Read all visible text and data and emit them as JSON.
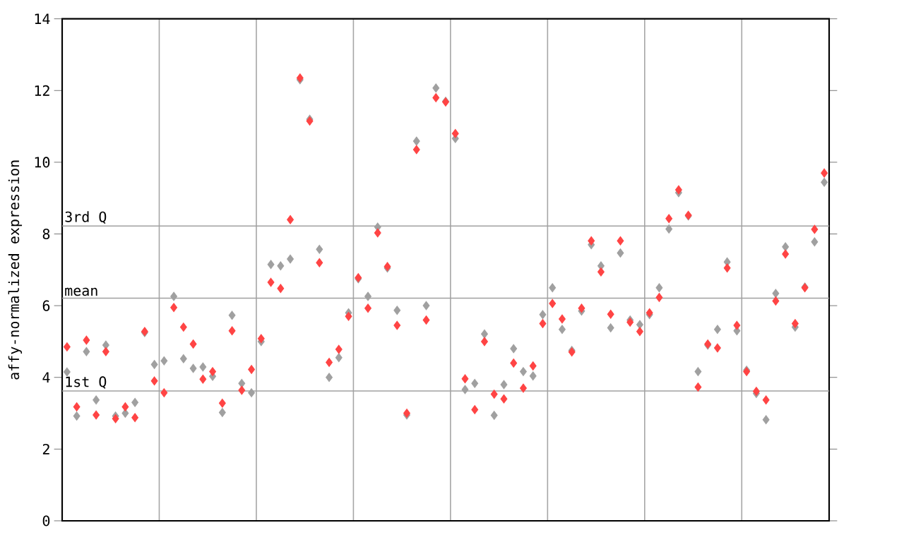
{
  "chart_data": {
    "type": "scatter",
    "ylabel": "affy-normalized expression",
    "ylim": [
      0,
      14
    ],
    "categories": [
      null,
      null,
      null,
      null,
      null,
      null,
      null,
      null,
      null,
      null,
      null,
      null,
      null,
      null,
      null,
      null,
      null,
      null,
      null,
      null,
      null,
      null,
      null,
      null,
      null,
      null,
      null,
      null,
      null,
      null,
      null,
      null,
      null,
      null,
      null,
      null,
      null,
      null,
      null,
      null,
      null,
      null,
      null,
      null,
      null,
      null,
      null,
      null,
      null,
      null,
      null,
      null,
      null,
      null,
      null,
      null,
      null,
      null,
      null,
      null,
      null,
      null,
      null,
      null,
      null,
      null,
      null,
      null,
      null,
      null,
      null,
      null,
      null,
      null,
      null,
      null,
      null,
      null,
      null
    ],
    "yticks": [
      0,
      2,
      4,
      6,
      8,
      10,
      12,
      14
    ],
    "grid": "x",
    "tick_labels": "y",
    "marker": "diamond",
    "ref_lines": [
      {
        "axis": "y",
        "value": 3.62,
        "label": "1st Q",
        "color": "#a0a0a0"
      },
      {
        "axis": "y",
        "value": 6.21,
        "label": "mean",
        "color": "#a0a0a0"
      },
      {
        "axis": "y",
        "value": 8.22,
        "label": "3rd Q",
        "color": "#a0a0a0"
      }
    ],
    "series": [
      {
        "color": "#a0a0a0",
        "values": [
          4.15,
          2.92,
          4.72,
          3.37,
          4.9,
          2.92,
          3.0,
          3.3,
          5.25,
          4.36,
          4.46,
          6.26,
          4.52,
          4.25,
          4.29,
          4.03,
          3.02,
          5.73,
          3.83,
          3.57,
          5.0,
          7.15,
          7.11,
          7.3,
          12.3,
          11.2,
          7.57,
          4.0,
          4.55,
          5.8,
          6.75,
          6.26,
          8.19,
          7.05,
          5.87,
          2.95,
          10.59,
          6.0,
          12.07,
          11.7,
          10.66,
          3.66,
          3.83,
          5.21,
          2.94,
          3.8,
          4.8,
          4.16,
          4.04,
          5.75,
          6.5,
          5.34,
          4.75,
          5.85,
          7.7,
          7.11,
          5.38,
          7.47,
          5.6,
          5.47,
          5.75,
          6.5,
          8.14,
          9.15,
          8.5,
          4.16,
          4.9,
          5.34,
          7.22,
          5.3,
          4.2,
          3.55,
          2.82,
          6.34,
          7.64,
          5.4,
          6.52,
          7.78,
          9.44
        ]
      },
      {
        "color": "#ff4444",
        "values": [
          4.85,
          3.18,
          5.04,
          2.95,
          4.72,
          2.85,
          3.18,
          2.88,
          5.28,
          3.9,
          3.57,
          5.95,
          5.4,
          4.93,
          3.95,
          4.16,
          3.28,
          5.3,
          3.64,
          4.22,
          5.08,
          6.65,
          6.48,
          8.4,
          12.35,
          11.15,
          7.2,
          4.42,
          4.78,
          5.7,
          6.78,
          5.93,
          8.03,
          7.09,
          5.45,
          3.0,
          10.35,
          5.6,
          11.8,
          11.68,
          10.8,
          3.96,
          3.1,
          5.0,
          3.53,
          3.4,
          4.4,
          3.7,
          4.32,
          5.5,
          6.06,
          5.63,
          4.71,
          5.93,
          7.81,
          6.94,
          5.76,
          7.81,
          5.54,
          5.28,
          5.8,
          6.23,
          8.43,
          9.23,
          8.52,
          3.73,
          4.93,
          4.82,
          7.05,
          5.45,
          4.16,
          3.61,
          3.37,
          6.13,
          7.44,
          5.5,
          6.5,
          8.13,
          9.7
        ]
      }
    ]
  }
}
